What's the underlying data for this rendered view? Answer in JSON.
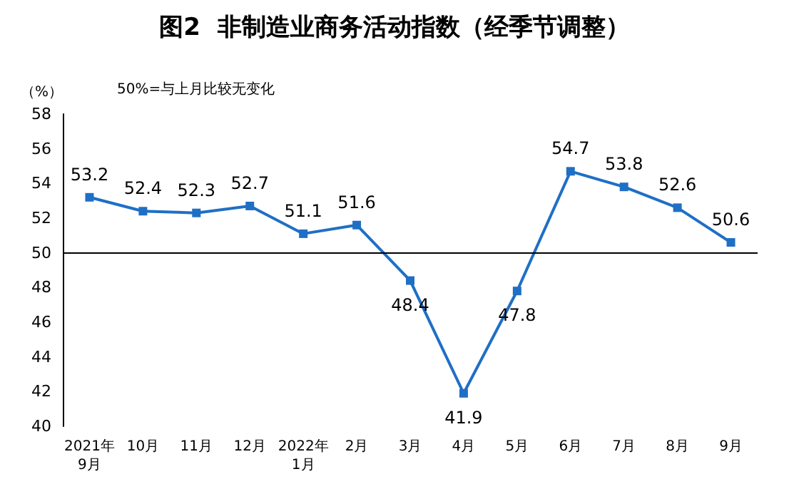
{
  "chart_data": {
    "type": "line",
    "title": "图2  非制造业商务活动指数（经季节调整）",
    "ylabel": "（%）",
    "annotations": [
      "50%=与上月比较无变化"
    ],
    "categories": [
      "2021年\n9月",
      "10月",
      "11月",
      "12月",
      "2022年\n1月",
      "2月",
      "3月",
      "4月",
      "5月",
      "6月",
      "7月",
      "8月",
      "9月"
    ],
    "series": [
      {
        "color": "#1f6fc5",
        "values": [
          53.2,
          52.4,
          52.3,
          52.7,
          51.1,
          51.6,
          48.4,
          41.9,
          47.8,
          54.7,
          53.8,
          52.6,
          50.6
        ]
      }
    ],
    "ylim": [
      40,
      58
    ],
    "yticks": [
      40,
      42,
      44,
      46,
      48,
      50,
      52,
      54,
      56,
      58
    ],
    "ref_lines": [
      {
        "axis": "y",
        "value": 50,
        "color": "#000000"
      }
    ],
    "data_labels": true,
    "marker": "square",
    "line_style": "solid"
  }
}
